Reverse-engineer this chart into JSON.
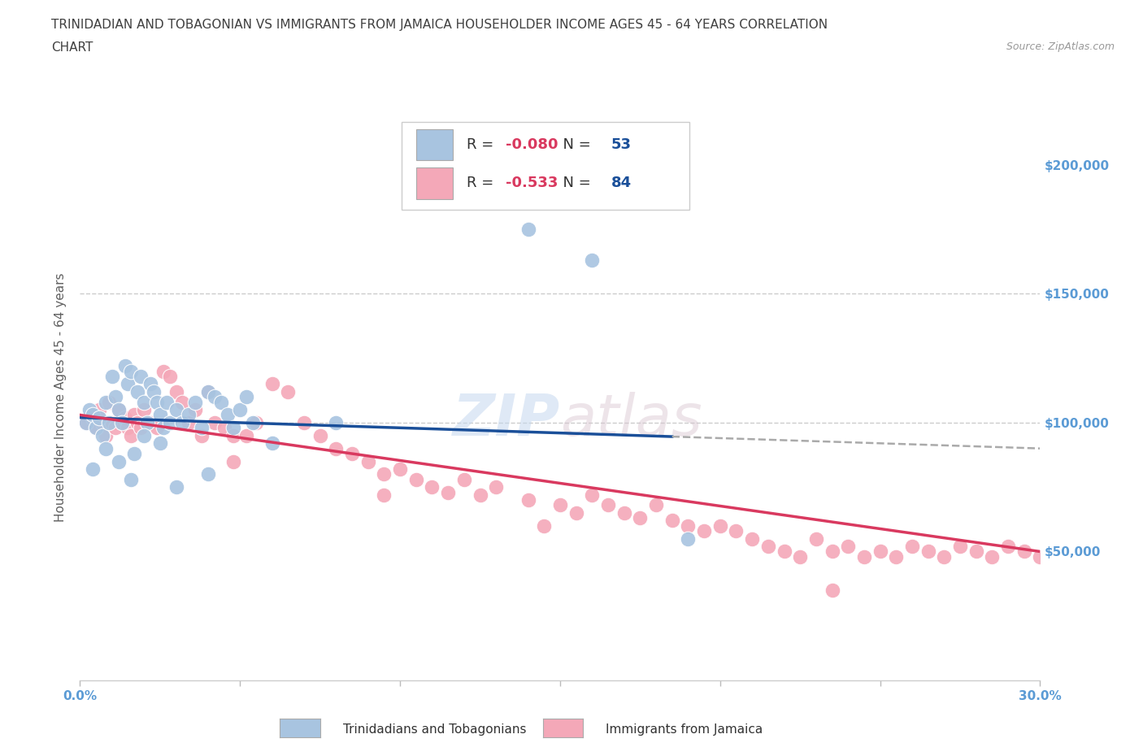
{
  "title_line1": "TRINIDADIAN AND TOBAGONIAN VS IMMIGRANTS FROM JAMAICA HOUSEHOLDER INCOME AGES 45 - 64 YEARS CORRELATION",
  "title_line2": "CHART",
  "source": "Source: ZipAtlas.com",
  "ylabel": "Householder Income Ages 45 - 64 years",
  "xlim": [
    0.0,
    0.3
  ],
  "ylim": [
    0,
    220000
  ],
  "yticks": [
    0,
    50000,
    100000,
    150000,
    200000
  ],
  "ytick_labels": [
    "",
    "$50,000",
    "$100,000",
    "$150,000",
    "$200,000"
  ],
  "xticks": [
    0.0,
    0.05,
    0.1,
    0.15,
    0.2,
    0.25,
    0.3
  ],
  "xtick_labels": [
    "0.0%",
    "",
    "",
    "",
    "",
    "",
    "30.0%"
  ],
  "legend_labels": [
    "Trinidadians and Tobagonians",
    "Immigrants from Jamaica"
  ],
  "blue_color": "#a8c4e0",
  "pink_color": "#f4a8b8",
  "blue_line_color": "#1a4f99",
  "pink_line_color": "#d9395f",
  "R_blue": -0.08,
  "N_blue": 53,
  "R_pink": -0.533,
  "N_pink": 84,
  "blue_scatter_x": [
    0.002,
    0.003,
    0.004,
    0.005,
    0.006,
    0.007,
    0.008,
    0.009,
    0.01,
    0.011,
    0.012,
    0.013,
    0.014,
    0.015,
    0.016,
    0.017,
    0.018,
    0.019,
    0.02,
    0.021,
    0.022,
    0.023,
    0.024,
    0.025,
    0.026,
    0.027,
    0.028,
    0.03,
    0.032,
    0.034,
    0.036,
    0.038,
    0.04,
    0.042,
    0.044,
    0.046,
    0.048,
    0.05,
    0.052,
    0.054,
    0.004,
    0.008,
    0.012,
    0.016,
    0.02,
    0.025,
    0.03,
    0.04,
    0.06,
    0.08,
    0.14,
    0.16,
    0.19
  ],
  "blue_scatter_y": [
    100000,
    105000,
    103000,
    98000,
    102000,
    95000,
    108000,
    100000,
    118000,
    110000,
    105000,
    100000,
    122000,
    115000,
    120000,
    88000,
    112000,
    118000,
    108000,
    100000,
    115000,
    112000,
    108000,
    103000,
    98000,
    108000,
    100000,
    105000,
    100000,
    103000,
    108000,
    98000,
    112000,
    110000,
    108000,
    103000,
    98000,
    105000,
    110000,
    100000,
    82000,
    90000,
    85000,
    78000,
    95000,
    92000,
    75000,
    80000,
    92000,
    100000,
    175000,
    163000,
    55000
  ],
  "pink_scatter_x": [
    0.002,
    0.004,
    0.005,
    0.006,
    0.007,
    0.008,
    0.009,
    0.01,
    0.011,
    0.012,
    0.013,
    0.014,
    0.015,
    0.016,
    0.017,
    0.018,
    0.019,
    0.02,
    0.022,
    0.024,
    0.026,
    0.028,
    0.03,
    0.032,
    0.034,
    0.036,
    0.038,
    0.04,
    0.042,
    0.045,
    0.048,
    0.052,
    0.055,
    0.06,
    0.065,
    0.07,
    0.075,
    0.08,
    0.085,
    0.09,
    0.095,
    0.1,
    0.105,
    0.11,
    0.115,
    0.12,
    0.125,
    0.13,
    0.14,
    0.15,
    0.155,
    0.16,
    0.165,
    0.17,
    0.175,
    0.18,
    0.185,
    0.19,
    0.195,
    0.2,
    0.205,
    0.21,
    0.215,
    0.22,
    0.225,
    0.23,
    0.235,
    0.24,
    0.245,
    0.25,
    0.255,
    0.26,
    0.265,
    0.27,
    0.275,
    0.28,
    0.285,
    0.29,
    0.295,
    0.3,
    0.048,
    0.095,
    0.145,
    0.235
  ],
  "pink_scatter_y": [
    100000,
    102000,
    98000,
    105000,
    100000,
    95000,
    108000,
    100000,
    98000,
    105000,
    100000,
    102000,
    98000,
    95000,
    103000,
    100000,
    98000,
    105000,
    100000,
    98000,
    120000,
    118000,
    112000,
    108000,
    100000,
    105000,
    95000,
    112000,
    100000,
    98000,
    95000,
    95000,
    100000,
    115000,
    112000,
    100000,
    95000,
    90000,
    88000,
    85000,
    80000,
    82000,
    78000,
    75000,
    73000,
    78000,
    72000,
    75000,
    70000,
    68000,
    65000,
    72000,
    68000,
    65000,
    63000,
    68000,
    62000,
    60000,
    58000,
    60000,
    58000,
    55000,
    52000,
    50000,
    48000,
    55000,
    50000,
    52000,
    48000,
    50000,
    48000,
    52000,
    50000,
    48000,
    52000,
    50000,
    48000,
    52000,
    50000,
    48000,
    85000,
    72000,
    60000,
    35000
  ],
  "watermark_top": "ZIP",
  "watermark_bottom": "atlas",
  "background_color": "#ffffff",
  "grid_color": "#cccccc",
  "tick_color": "#5b9bd5",
  "title_color": "#404040",
  "ylabel_color": "#606060"
}
